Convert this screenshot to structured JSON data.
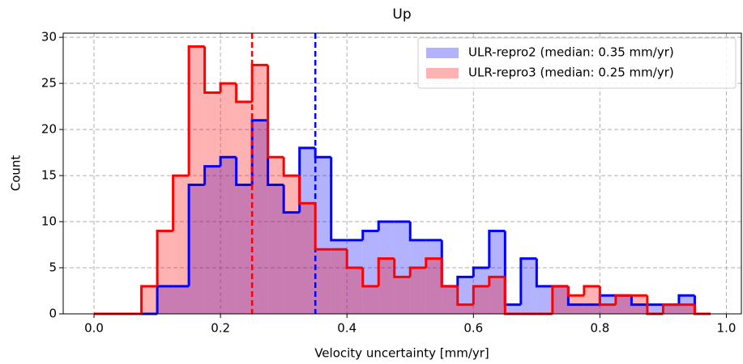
{
  "chart_data": {
    "type": "histogram",
    "title": "Up",
    "x_label": "Velocity uncertainty [mm/yr]",
    "y_label": "Count",
    "bins": [
      0,
      0.025,
      0.05,
      0.075,
      0.1,
      0.125,
      0.15,
      0.175,
      0.2,
      0.225,
      0.25,
      0.275,
      0.3,
      0.325,
      0.35,
      0.375,
      0.4,
      0.425,
      0.45,
      0.475,
      0.5,
      0.525,
      0.55,
      0.575,
      0.6,
      0.625,
      0.65,
      0.675,
      0.7,
      0.725,
      0.75,
      0.775,
      0.8,
      0.825,
      0.85,
      0.875,
      0.9,
      0.925,
      0.95,
      0.975
    ],
    "series": [
      {
        "name": "ULR-repro2 (median: 0.35 mm/yr)",
        "color": "#0000ff",
        "median": 0.35,
        "values": [
          0,
          0,
          0,
          0,
          3,
          3,
          14,
          16,
          17,
          14,
          21,
          14,
          11,
          18,
          17,
          8,
          8,
          9,
          10,
          10,
          8,
          8,
          3,
          4,
          5,
          9,
          1,
          6,
          3,
          3,
          1,
          1,
          2,
          2,
          1,
          1,
          1,
          2,
          0
        ]
      },
      {
        "name": "ULR-repro3 (median: 0.25 mm/yr)",
        "color": "#ff0000",
        "median": 0.25,
        "values": [
          0,
          0,
          0,
          3,
          9,
          15,
          29,
          24,
          25,
          23,
          27,
          17,
          15,
          12,
          7,
          7,
          5,
          3,
          6,
          4,
          5,
          6,
          3,
          1,
          3,
          4,
          0,
          0,
          0,
          3,
          2,
          3,
          1,
          2,
          2,
          0,
          1,
          1,
          0
        ]
      }
    ],
    "xlim": [
      -0.04875,
      1.02375
    ],
    "ylim": [
      0,
      30.45
    ],
    "xticks": [
      {
        "value": 0,
        "label": "0.0"
      },
      0.2,
      0.4,
      0.6,
      0.8,
      {
        "value": 1,
        "label": "1.0"
      }
    ],
    "yticks": [
      0,
      5,
      10,
      15,
      20,
      25,
      30
    ],
    "grid": true,
    "legend": "upper right"
  }
}
